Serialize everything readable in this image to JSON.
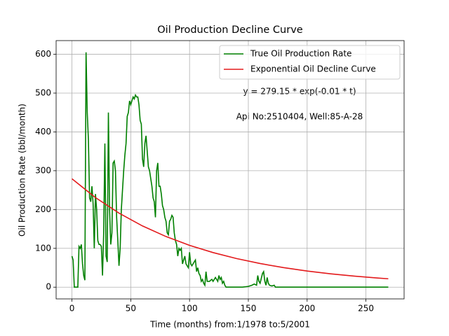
{
  "chart_data": {
    "type": "line",
    "title": "Oil Production Decline Curve",
    "xlabel": "Time (months) from:1/1978 to:5/2001",
    "ylabel": "Oil Production Rate (bbl/month)",
    "annotations": [
      "y = 279.15 * exp(-0.01 * t)",
      "Api No:2510404, Well:85-A-28"
    ],
    "xlim": [
      -13.45,
      282.45
    ],
    "ylim": [
      -30.25,
      635.25
    ],
    "xticks": [
      0,
      50,
      100,
      150,
      200,
      250
    ],
    "yticks": [
      0,
      100,
      200,
      300,
      400,
      500,
      600
    ],
    "grid": true,
    "legend": "upper right",
    "series": [
      {
        "name": "True Oil Production Rate",
        "color": "#008000",
        "x": [
          0,
          1,
          2,
          3,
          4,
          5,
          6,
          7,
          8,
          9,
          10,
          11,
          12,
          13,
          14,
          15,
          16,
          17,
          18,
          19,
          20,
          21,
          22,
          23,
          24,
          25,
          26,
          27,
          28,
          29,
          30,
          31,
          32,
          33,
          34,
          35,
          36,
          37,
          38,
          39,
          40,
          41,
          42,
          43,
          44,
          45,
          46,
          47,
          48,
          49,
          50,
          51,
          52,
          53,
          54,
          55,
          56,
          57,
          58,
          59,
          60,
          61,
          62,
          63,
          64,
          65,
          66,
          67,
          68,
          69,
          70,
          71,
          72,
          73,
          74,
          75,
          76,
          77,
          78,
          79,
          80,
          81,
          82,
          83,
          84,
          85,
          86,
          87,
          88,
          89,
          90,
          91,
          92,
          93,
          94,
          95,
          96,
          97,
          98,
          99,
          100,
          101,
          102,
          103,
          104,
          105,
          106,
          107,
          108,
          109,
          110,
          111,
          112,
          113,
          114,
          115,
          116,
          117,
          118,
          119,
          120,
          121,
          122,
          123,
          124,
          125,
          126,
          127,
          128,
          129,
          130,
          131,
          135,
          140,
          145,
          150,
          153,
          155,
          157,
          158,
          159,
          160,
          162,
          163,
          164,
          165,
          166,
          167,
          168,
          170,
          172,
          173,
          175,
          200,
          250,
          269
        ],
        "values": [
          80,
          70,
          0,
          0,
          0,
          0,
          105,
          100,
          110,
          60,
          30,
          18,
          605,
          450,
          380,
          230,
          220,
          260,
          215,
          100,
          240,
          200,
          120,
          110,
          110,
          105,
          30,
          140,
          370,
          80,
          65,
          450,
          200,
          110,
          140,
          320,
          325,
          300,
          180,
          120,
          55,
          100,
          200,
          250,
          300,
          340,
          370,
          440,
          450,
          480,
          470,
          480,
          490,
          485,
          495,
          490,
          490,
          470,
          430,
          420,
          330,
          310,
          370,
          390,
          350,
          310,
          300,
          280,
          260,
          230,
          220,
          180,
          300,
          320,
          260,
          260,
          240,
          210,
          200,
          180,
          170,
          140,
          135,
          170,
          175,
          185,
          180,
          140,
          120,
          110,
          80,
          100,
          95,
          100,
          60,
          70,
          80,
          60,
          55,
          50,
          90,
          60,
          55,
          60,
          65,
          70,
          40,
          50,
          35,
          30,
          15,
          20,
          10,
          5,
          40,
          15,
          15,
          15,
          18,
          20,
          15,
          20,
          25,
          20,
          15,
          30,
          20,
          25,
          10,
          15,
          5,
          0,
          0,
          0,
          0,
          2,
          5,
          8,
          5,
          30,
          15,
          10,
          35,
          40,
          15,
          5,
          25,
          10,
          5,
          3,
          5,
          0,
          0,
          0,
          0,
          0
        ]
      },
      {
        "name": "Exponential Oil Decline Curve",
        "color": "#e31a1c",
        "x": [
          0,
          20,
          40,
          60,
          80,
          100,
          120,
          140,
          160,
          180,
          200,
          220,
          240,
          260,
          269
        ],
        "values": [
          279.2,
          230.8,
          190.8,
          157.7,
          130.4,
          107.8,
          89.1,
          73.7,
          60.9,
          50.3,
          41.6,
          34.4,
          28.4,
          23.5,
          21.6
        ]
      }
    ]
  }
}
